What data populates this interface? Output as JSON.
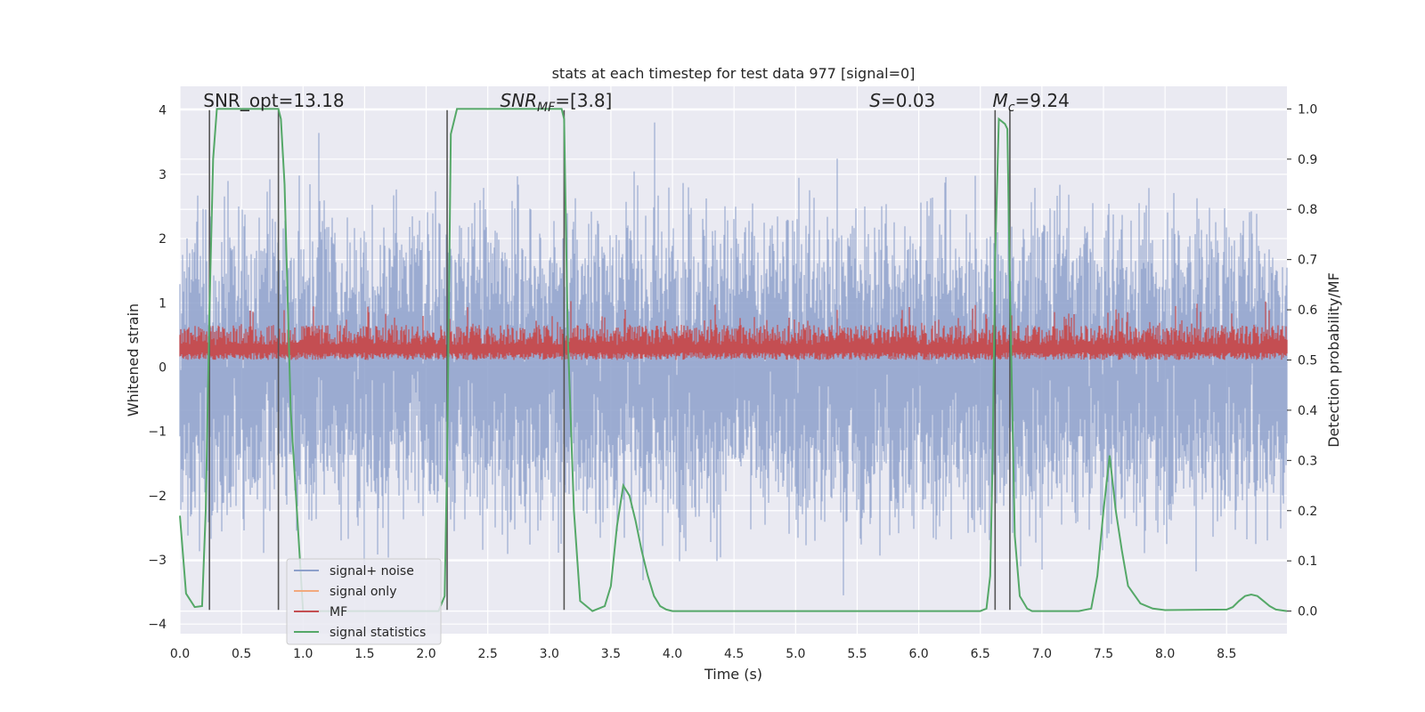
{
  "chart_data": {
    "type": "line",
    "title": "stats at each timestep for test data 977 [signal=0]",
    "xlabel": "Time (s)",
    "ylabel": "Whitened strain",
    "y2label": "Detection probability/MF",
    "xlim": [
      0,
      8.99
    ],
    "ylim": [
      -4.15,
      4.37
    ],
    "y2lim": [
      -0.045,
      1.045
    ],
    "xticks": [
      "0.0",
      "0.5",
      "1.0",
      "1.5",
      "2.0",
      "2.5",
      "3.0",
      "3.5",
      "4.0",
      "4.5",
      "5.0",
      "5.5",
      "6.0",
      "6.5",
      "7.0",
      "7.5",
      "8.0",
      "8.5"
    ],
    "yticks": [
      "4",
      "3",
      "2",
      "1",
      "0",
      "−1",
      "−2",
      "−3",
      "−4"
    ],
    "y2ticks": [
      "1.0",
      "0.9",
      "0.8",
      "0.7",
      "0.6",
      "0.5",
      "0.4",
      "0.3",
      "0.2",
      "0.1",
      "0.0"
    ],
    "annotations": {
      "snr_opt": "SNR_opt=13.18",
      "snr_mf_prefix": "SNR",
      "snr_mf_sub": "MF",
      "snr_mf_value": "=[3.8]",
      "s_prefix": "S",
      "s_value": "=0.03",
      "mc_prefix": "M",
      "mc_sub": "c",
      "mc_value": "=9.24"
    },
    "legend": {
      "placement": "lower-left",
      "entries": [
        {
          "label": "signal+ noise",
          "color": "#8da0cb"
        },
        {
          "label": "signal only",
          "color": "#f2a97e"
        },
        {
          "label": "MF",
          "color": "#c44e52"
        },
        {
          "label": "signal statistics",
          "color": "#55a868"
        }
      ]
    },
    "vertical_markers": [
      0.24,
      0.8,
      2.17,
      3.12,
      6.62,
      6.74
    ],
    "series": [
      {
        "name": "signal statistics",
        "axis": "right",
        "color": "#55a868",
        "x": [
          0.0,
          0.05,
          0.12,
          0.18,
          0.21,
          0.24,
          0.27,
          0.3,
          0.8,
          0.82,
          0.85,
          0.9,
          1.0,
          2.1,
          2.15,
          2.17,
          2.2,
          2.25,
          3.1,
          3.12,
          3.15,
          3.2,
          3.25,
          3.35,
          3.45,
          3.5,
          3.55,
          3.6,
          3.65,
          3.7,
          3.75,
          3.8,
          3.85,
          3.9,
          3.95,
          4.0,
          6.5,
          6.55,
          6.58,
          6.6,
          6.62,
          6.65,
          6.7,
          6.72,
          6.74,
          6.78,
          6.82,
          6.88,
          6.92,
          7.0,
          7.3,
          7.4,
          7.45,
          7.5,
          7.55,
          7.6,
          7.65,
          7.7,
          7.8,
          7.9,
          8.0,
          8.5,
          8.55,
          8.6,
          8.65,
          8.7,
          8.75,
          8.8,
          8.85,
          8.9,
          8.99
        ],
        "values": [
          0.19,
          0.035,
          0.008,
          0.01,
          0.2,
          0.6,
          0.9,
          1.0,
          1.0,
          0.98,
          0.85,
          0.4,
          0.0,
          0.0,
          0.03,
          0.3,
          0.95,
          1.0,
          1.0,
          0.98,
          0.55,
          0.2,
          0.02,
          0.0,
          0.01,
          0.05,
          0.17,
          0.25,
          0.23,
          0.18,
          0.12,
          0.07,
          0.03,
          0.01,
          0.003,
          0.0,
          0.0,
          0.005,
          0.07,
          0.3,
          0.7,
          0.98,
          0.97,
          0.96,
          0.65,
          0.15,
          0.03,
          0.005,
          0.0,
          0.0,
          0.0,
          0.005,
          0.07,
          0.2,
          0.31,
          0.2,
          0.12,
          0.05,
          0.015,
          0.005,
          0.002,
          0.003,
          0.008,
          0.02,
          0.03,
          0.033,
          0.03,
          0.02,
          0.01,
          0.003,
          0.0
        ]
      }
    ]
  }
}
